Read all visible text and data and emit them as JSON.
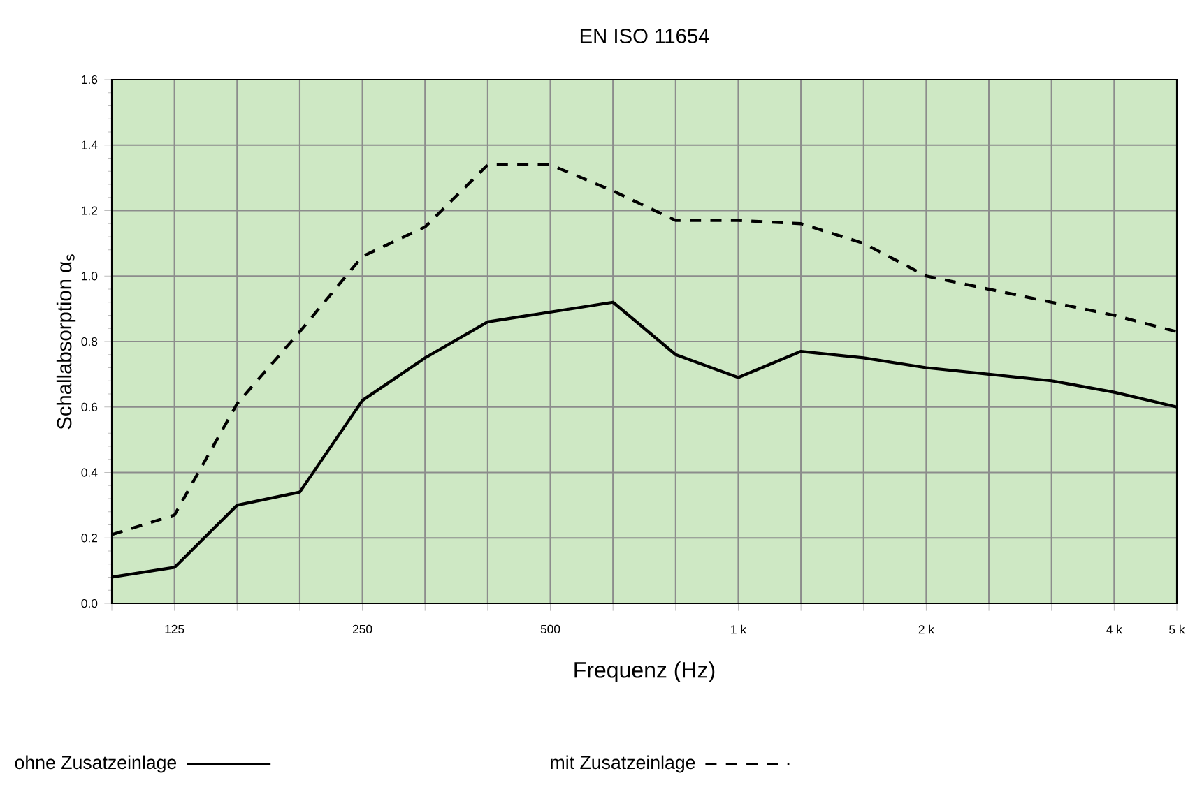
{
  "chart_data": {
    "type": "line",
    "title": "EN ISO 11654",
    "xlabel": "Frequenz (Hz)",
    "ylabel": "Schallabsorption α$_{s}$",
    "categories": [
      null,
      "125",
      null,
      null,
      "250",
      null,
      null,
      "500",
      null,
      null,
      "1 k",
      null,
      null,
      "2 k",
      null,
      null,
      "4 k",
      "5 k"
    ],
    "series": [
      {
        "name": "ohne Zusatzeinlage",
        "color": "#000000",
        "line_style": "solid",
        "values": [
          0.08,
          0.11,
          0.3,
          0.34,
          0.62,
          0.75,
          0.86,
          0.89,
          0.92,
          0.76,
          0.69,
          0.77,
          0.75,
          0.72,
          0.7,
          0.68,
          0.645,
          0.6
        ]
      },
      {
        "name": "mit Zusatzeinlage",
        "color": "#000000",
        "line_style": "dashed",
        "values": [
          0.21,
          0.27,
          0.61,
          0.83,
          1.06,
          1.15,
          1.34,
          1.34,
          1.26,
          1.17,
          1.17,
          1.16,
          1.1,
          1.0,
          0.96,
          0.92,
          0.88,
          0.83
        ]
      }
    ],
    "ylim": [
      0,
      1.6
    ],
    "yticks": [
      {
        "value": 0,
        "label": "0.0"
      },
      {
        "value": 0.2,
        "label": "0.2"
      },
      {
        "value": 0.4,
        "label": "0.4"
      },
      {
        "value": 0.6,
        "label": "0.6"
      },
      {
        "value": 0.8,
        "label": "0.8"
      },
      {
        "value": 1.0,
        "label": "1.0"
      },
      {
        "value": 1.2,
        "label": "1.2"
      },
      {
        "value": 1.4,
        "label": "1.4"
      },
      {
        "value": 1.6,
        "label": "1.6"
      }
    ],
    "grid": true,
    "legend": "bottom",
    "marker": "none"
  }
}
